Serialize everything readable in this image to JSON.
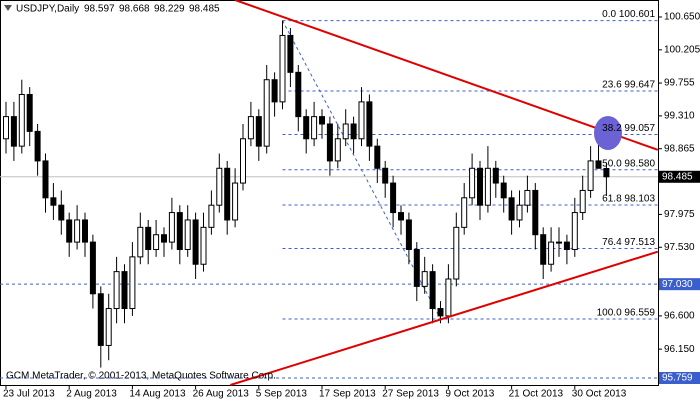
{
  "chart_data": {
    "type": "candlestick",
    "title": "USDJPY,Daily",
    "footer": "GCM MetaTrader, © 2001-2013, MetaQuotes Software Corp.",
    "categories": [
      "23 Jul 2013",
      null,
      null,
      null,
      null,
      null,
      null,
      null,
      "2 Aug 2013",
      null,
      null,
      null,
      null,
      null,
      null,
      null,
      "14 Aug 2013",
      null,
      null,
      null,
      null,
      null,
      null,
      null,
      "26 Aug 2013",
      null,
      null,
      null,
      null,
      null,
      null,
      null,
      "5 Sep 2013",
      null,
      null,
      null,
      null,
      null,
      null,
      null,
      "17 Sep 2013",
      null,
      null,
      null,
      null,
      null,
      null,
      null,
      "27 Sep 2013",
      null,
      null,
      null,
      null,
      null,
      null,
      null,
      "9 Oct 2013",
      null,
      null,
      null,
      null,
      null,
      null,
      null,
      "21 Oct 2013",
      null,
      null,
      null,
      null,
      null,
      null,
      null,
      "30 Oct 2013",
      null,
      null,
      null,
      null
    ],
    "open": [
      99.0,
      99.3,
      98.9,
      99.6,
      99.1,
      98.7,
      98.2,
      98.1,
      97.9,
      97.6,
      97.9,
      97.6,
      96.9,
      96.2,
      96.7,
      97.2,
      96.7,
      97.4,
      97.8,
      97.5,
      97.7,
      97.6,
      98.0,
      97.5,
      97.9,
      97.3,
      97.8,
      98.1,
      98.6,
      97.9,
      98.4,
      99.0,
      99.3,
      98.9,
      99.8,
      99.5,
      100.4,
      99.9,
      99.3,
      99.0,
      99.3,
      99.2,
      98.7,
      99.0,
      99.2,
      99.0,
      99.5,
      98.9,
      98.6,
      98.4,
      98.0,
      97.9,
      97.5,
      97.0,
      97.2,
      96.7,
      96.6,
      97.1,
      97.8,
      98.2,
      98.6,
      98.1,
      98.6,
      98.4,
      98.2,
      97.9,
      98.1,
      98.3,
      97.7,
      97.3,
      97.6,
      97.6,
      97.5,
      98.0,
      98.3,
      98.7,
      98.597
    ],
    "high": [
      99.5,
      99.5,
      99.8,
      99.7,
      99.2,
      98.8,
      98.4,
      98.3,
      98.0,
      98.1,
      98.0,
      97.7,
      97.0,
      96.9,
      97.4,
      97.3,
      97.6,
      98.0,
      97.9,
      97.9,
      97.8,
      98.2,
      98.1,
      98.1,
      98.0,
      98.0,
      98.3,
      98.8,
      98.7,
      98.6,
      99.2,
      99.5,
      99.4,
      100.0,
      99.9,
      100.6,
      100.5,
      100.0,
      99.4,
      99.5,
      99.4,
      99.3,
      99.2,
      99.4,
      99.3,
      99.7,
      99.6,
      99.0,
      98.7,
      98.5,
      98.1,
      98.0,
      97.6,
      97.4,
      97.3,
      96.8,
      97.3,
      98.0,
      98.4,
      98.8,
      98.7,
      98.9,
      98.7,
      98.5,
      98.3,
      98.3,
      98.5,
      98.4,
      97.8,
      97.8,
      97.8,
      97.7,
      98.2,
      98.5,
      98.9,
      99.2,
      98.668
    ],
    "low": [
      98.8,
      98.7,
      98.8,
      98.9,
      98.5,
      98.0,
      97.9,
      97.7,
      97.4,
      97.5,
      97.4,
      96.7,
      95.9,
      96.0,
      96.5,
      96.5,
      96.6,
      97.3,
      97.3,
      97.4,
      97.4,
      97.5,
      97.3,
      97.4,
      97.1,
      97.2,
      97.7,
      98.0,
      97.7,
      97.8,
      98.3,
      98.9,
      98.7,
      98.8,
      99.3,
      99.4,
      99.7,
      99.1,
      98.8,
      98.9,
      99.0,
      98.5,
      98.6,
      98.9,
      98.8,
      98.9,
      98.7,
      98.4,
      98.2,
      97.8,
      97.7,
      97.3,
      96.8,
      96.9,
      96.5,
      96.5,
      96.5,
      97.0,
      97.7,
      98.1,
      97.9,
      98.0,
      98.2,
      98.0,
      97.7,
      97.8,
      98.0,
      97.5,
      97.1,
      97.2,
      97.4,
      97.3,
      97.4,
      97.9,
      98.2,
      98.6,
      98.229
    ],
    "close": [
      99.3,
      98.9,
      99.6,
      99.1,
      98.7,
      98.2,
      98.1,
      97.9,
      97.6,
      97.9,
      97.6,
      96.9,
      96.2,
      96.7,
      97.2,
      96.7,
      97.4,
      97.8,
      97.5,
      97.7,
      97.6,
      98.0,
      97.5,
      97.9,
      97.3,
      97.8,
      98.1,
      98.6,
      97.9,
      98.4,
      99.0,
      99.3,
      98.9,
      99.8,
      99.5,
      100.4,
      99.9,
      99.3,
      99.0,
      99.3,
      99.2,
      98.7,
      99.0,
      99.2,
      99.0,
      99.5,
      98.9,
      98.6,
      98.4,
      98.0,
      97.9,
      97.5,
      97.0,
      97.2,
      96.7,
      96.6,
      97.1,
      97.8,
      98.2,
      98.6,
      98.1,
      98.6,
      98.4,
      98.2,
      97.9,
      98.1,
      98.3,
      97.7,
      97.3,
      97.6,
      97.6,
      97.5,
      98.0,
      98.3,
      98.7,
      98.6,
      98.485
    ],
    "up_color": "#ffffff",
    "down_color": "#000000",
    "ylim": [
      95.664,
      100.88
    ],
    "yticks": [
      {
        "value": 100.65,
        "label": "100.650"
      },
      100.205,
      99.755,
      {
        "value": 99.31,
        "label": "99.310"
      },
      98.865,
      97.975,
      {
        "value": 97.53,
        "label": "97.530"
      },
      {
        "value": 96.6,
        "label": "96.600"
      },
      {
        "value": 96.15,
        "label": "96.150"
      }
    ],
    "price_lines": [
      {
        "value": 98.485,
        "color": "#c0c0c0",
        "box": "#000000"
      },
      {
        "value": 97.03,
        "label": "97.030",
        "color": "#3a5fcd",
        "box": "#3a5fcd"
      },
      {
        "value": 95.759,
        "color": "#3a5fcd",
        "box": "#3a5fcd"
      }
    ],
    "fib_x": [
      35,
      55
    ],
    "fib_color": "#3a5fcd",
    "fib_levels": [
      {
        "value": 100.601,
        "label": "0.0 100.601"
      },
      {
        "value": 99.647,
        "label": "23.6 99.647"
      },
      {
        "value": 99.057,
        "label": "38.2 99.057"
      },
      {
        "value": 98.58,
        "label": "50.0 98.580"
      },
      {
        "value": 98.103,
        "label": "61.8 98.103"
      },
      {
        "value": 97.513,
        "label": "76.4 97.513"
      },
      {
        "value": 96.559,
        "label": "100.0 96.559"
      }
    ],
    "trendlines": [
      {
        "x": [
          29,
          82.5
        ],
        "y": [
          100.88,
          98.85
        ],
        "color": "#e00000"
      },
      {
        "x": [
          28.4,
          82.5
        ],
        "y": [
          95.664,
          97.47
        ],
        "color": "#e00000"
      }
    ]
  }
}
